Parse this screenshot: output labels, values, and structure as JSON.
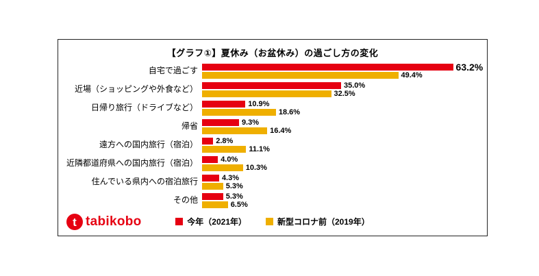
{
  "title": "【グラフ①】夏休み（お盆休み）の過ごし方の変化",
  "logo": {
    "text": "tabikobo",
    "mark": "t"
  },
  "legend": {
    "items": [
      {
        "label": "今年（2021年）",
        "color": "#e60012"
      },
      {
        "label": "新型コロナ前（2019年）",
        "color": "#efaf00"
      }
    ]
  },
  "chart_data": {
    "type": "bar",
    "orientation": "horizontal",
    "title": "【グラフ①】夏休み（お盆休み）の過ごし方の変化",
    "categories": [
      "自宅で過ごす",
      "近場（ショッピングや外食など）",
      "日帰り旅行（ドライブなど）",
      "帰省",
      "遠方への国内旅行（宿泊）",
      "近隣都道府県への国内旅行（宿泊）",
      "住んでいる県内への宿泊旅行",
      "その他"
    ],
    "series": [
      {
        "name": "今年（2021年）",
        "color": "#e60012",
        "values": [
          63.2,
          35.0,
          10.9,
          9.3,
          2.8,
          4.0,
          4.3,
          5.3
        ]
      },
      {
        "name": "新型コロナ前（2019年）",
        "color": "#efaf00",
        "values": [
          49.4,
          32.5,
          18.6,
          16.4,
          11.1,
          10.3,
          5.3,
          6.5
        ]
      }
    ],
    "value_suffix": "%",
    "xlim": [
      0,
      70
    ],
    "grid": false,
    "legend_position": "bottom"
  }
}
